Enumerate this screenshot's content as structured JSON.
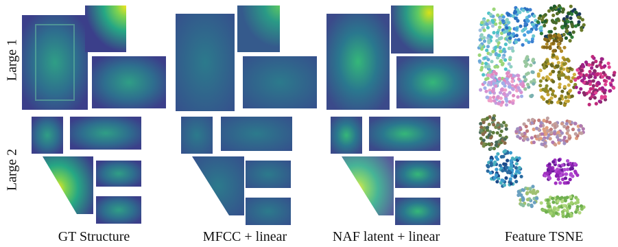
{
  "rows": [
    {
      "label": "Large 1"
    },
    {
      "label": "Large 2"
    }
  ],
  "columns": [
    {
      "caption": "GT Structure"
    },
    {
      "caption": "MFCC + linear"
    },
    {
      "caption": "NAF latent + linear"
    },
    {
      "caption": "Feature TSNE"
    }
  ],
  "colors": {
    "viridis_dark": "#3b4a8a",
    "viridis_mid": "#2a8a8a",
    "viridis_green": "#4cc46a",
    "viridis_yellow": "#f0e42a"
  }
}
